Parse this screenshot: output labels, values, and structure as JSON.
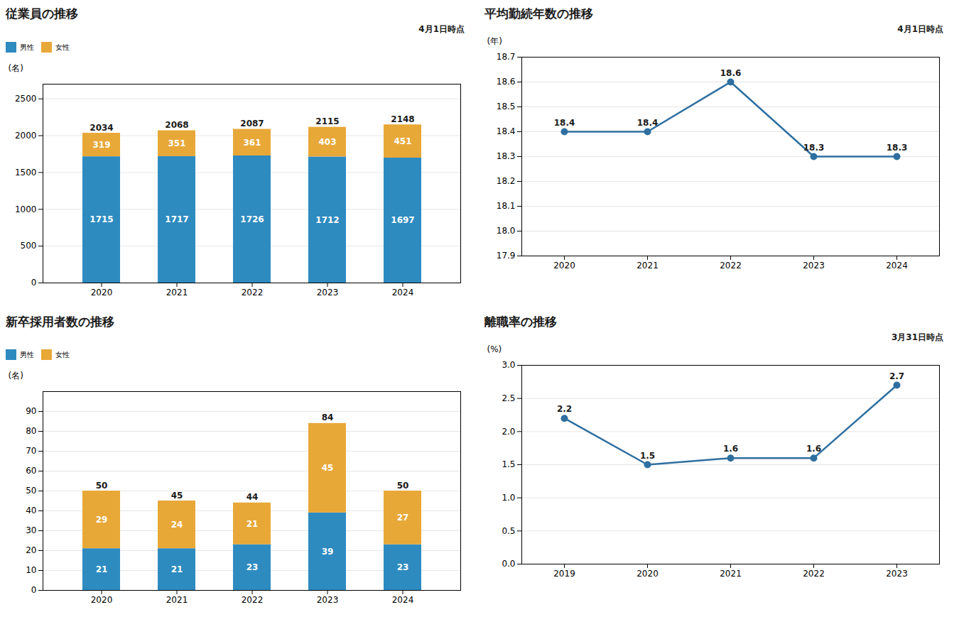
{
  "chart_data": [
    {
      "type": "bar",
      "title": "従業員の推移",
      "stacked": true,
      "categories": [
        "2020",
        "2021",
        "2022",
        "2023",
        "2024"
      ],
      "series": [
        {
          "name": "男性",
          "color": "#2e8bc0",
          "values": [
            1715,
            1717,
            1726,
            1712,
            1697
          ]
        },
        {
          "name": "女性",
          "color": "#e8a838",
          "values": [
            319,
            351,
            361,
            403,
            451
          ]
        }
      ],
      "totals": [
        2034,
        2068,
        2087,
        2115,
        2148
      ],
      "ylabel": "(名)",
      "annotation": "4月1日時点",
      "ylim": [
        0,
        2700
      ],
      "yticks": [
        0,
        500,
        1000,
        1500,
        2000,
        2500
      ],
      "grid": true,
      "legend": "upper left",
      "data_labels": true
    },
    {
      "type": "line",
      "title": "平均勤続年数の推移",
      "categories": [
        "2020",
        "2021",
        "2022",
        "2023",
        "2024"
      ],
      "values": [
        18.4,
        18.4,
        18.6,
        18.3,
        18.3
      ],
      "color": "#2e6fa0",
      "marker": "circle",
      "ylabel": "(年)",
      "annotation": "4月1日時点",
      "ylim": [
        17.9,
        18.7
      ],
      "yticks": [
        17.9,
        {
          "value": 18.0,
          "label": "18.0"
        },
        18.1,
        18.2,
        18.3,
        18.4,
        18.5,
        18.6,
        18.7
      ],
      "grid": true,
      "data_labels": true
    },
    {
      "type": "bar",
      "title": "新卒採用者数の推移",
      "stacked": true,
      "categories": [
        "2020",
        "2021",
        "2022",
        "2023",
        "2024"
      ],
      "series": [
        {
          "name": "男性",
          "color": "#2e8bc0",
          "values": [
            21,
            21,
            23,
            39,
            23
          ]
        },
        {
          "name": "女性",
          "color": "#e8a838",
          "values": [
            29,
            24,
            21,
            45,
            27
          ]
        }
      ],
      "totals": [
        50,
        45,
        44,
        84,
        50
      ],
      "ylabel": "(名)",
      "ylim": [
        0,
        100
      ],
      "yticks": [
        0,
        10,
        20,
        30,
        40,
        50,
        60,
        70,
        80,
        90
      ],
      "grid": true,
      "legend": "upper left",
      "data_labels": true
    },
    {
      "type": "line",
      "title": "離職率の推移",
      "categories": [
        "2019",
        "2020",
        "2021",
        "2022",
        "2023"
      ],
      "values": [
        2.2,
        1.5,
        1.6,
        1.6,
        2.7
      ],
      "color": "#2e6fa0",
      "marker": "circle",
      "ylabel": "(%)",
      "annotation": "3月31日時点",
      "ylim": [
        0,
        3.0
      ],
      "yticks": [
        {
          "value": 0,
          "label": "0.0"
        },
        0.5,
        {
          "value": 1.0,
          "label": "1.0"
        },
        1.5,
        {
          "value": 2.0,
          "label": "2.0"
        },
        2.5,
        {
          "value": 3.0,
          "label": "3.0"
        }
      ],
      "grid": true,
      "data_labels": true
    }
  ]
}
